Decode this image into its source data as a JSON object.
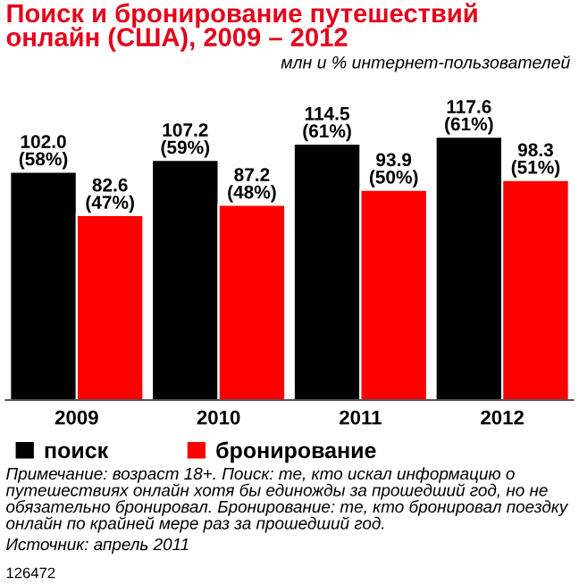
{
  "chart_data": {
    "type": "bar",
    "title": "Поиск и бронирование путешествий онлайн (США), 2009 – 2012",
    "subtitle": "млн и % интернет-пользователей",
    "categories": [
      "2009",
      "2010",
      "2011",
      "2012"
    ],
    "series": [
      {
        "name": "поиск",
        "color": "#000000",
        "values": [
          102.0,
          107.2,
          114.5,
          117.6
        ],
        "value_labels": [
          "102.0\n(58%)",
          "107.2\n(59%)",
          "114.5\n(61%)",
          "117.6\n(61%)"
        ]
      },
      {
        "name": "бронирование",
        "color": "#ff0000",
        "values": [
          82.6,
          87.2,
          93.9,
          98.3
        ],
        "value_labels": [
          "82.6\n(47%)",
          "87.2\n(48%)",
          "93.9\n(50%)",
          "98.3\n(51%)"
        ]
      }
    ],
    "grid": false,
    "legend": "bottom",
    "tick_labels": "x",
    "annotations": [
      "Примечание: возраст 18+. Поиск: те, кто искал информацию о путешествиях онлайн хотя бы единожды за прошедший год, но не обязательно бронировал. Бронирование: те, кто бронировал поездку онлайн по крайней мере раз за прошедший год.",
      "Источник: апрель 2011",
      "126472"
    ]
  }
}
